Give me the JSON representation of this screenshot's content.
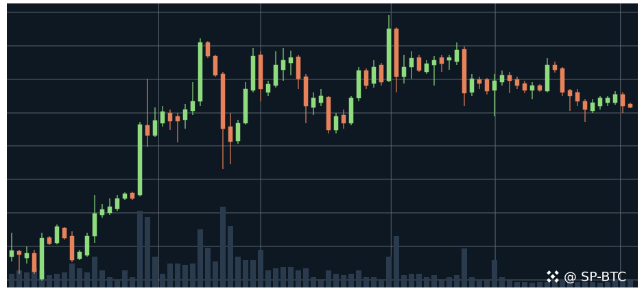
{
  "chart_data": {
    "type": "candlestick",
    "watermark": "@ SP-BTC",
    "ylim": [
      0,
      415
    ],
    "vlim": [
      0,
      415
    ],
    "ygrid": [
      11,
      60,
      109,
      158,
      207,
      255,
      304,
      353,
      402
    ],
    "xgrid": [
      19.5,
      33,
      50.3,
      64.1,
      80.7
    ],
    "background": "#0e1822",
    "grid_color": "#5b6470",
    "up_color": "#8fdc7e",
    "down_color": "#e8825a",
    "volume_color": "#2b3b4e",
    "open": [
      45,
      53,
      43,
      50,
      12,
      73,
      65,
      87,
      75,
      42,
      47,
      75,
      106,
      109,
      115,
      130,
      138,
      135,
      237,
      222,
      240,
      255,
      250,
      245,
      258,
      272,
      358,
      338,
      312,
      235,
      214,
      240,
      288,
      340,
      285,
      295,
      318,
      328,
      337,
      308,
      263,
      270,
      278,
      230,
      252,
      240,
      277,
      317,
      298,
      325,
      302,
      378,
      308,
      322,
      336,
      315,
      325,
      336,
      332,
      330,
      348,
      285,
      304,
      304,
      288,
      300,
      310,
      304,
      298,
      288,
      295,
      287,
      325,
      320,
      288,
      285,
      272,
      258,
      265,
      270,
      270,
      282,
      268
    ],
    "high": [
      80,
      55,
      60,
      55,
      80,
      75,
      92,
      88,
      82,
      55,
      80,
      135,
      122,
      130,
      135,
      139,
      140,
      242,
      305,
      263,
      265,
      260,
      255,
      268,
      300,
      364,
      360,
      340,
      315,
      255,
      245,
      300,
      350,
      345,
      302,
      345,
      350,
      346,
      340,
      312,
      285,
      290,
      280,
      255,
      260,
      280,
      322,
      320,
      332,
      328,
      398,
      380,
      340,
      345,
      340,
      332,
      338,
      340,
      340,
      358,
      352,
      312,
      308,
      306,
      312,
      317,
      315,
      308,
      302,
      300,
      297,
      335,
      330,
      322,
      290,
      290,
      275,
      275,
      280,
      280,
      287,
      285,
      270
    ],
    "low": [
      38,
      20,
      35,
      20,
      10,
      62,
      63,
      70,
      37,
      40,
      45,
      65,
      102,
      106,
      112,
      128,
      128,
      133,
      205,
      220,
      235,
      230,
      212,
      232,
      252,
      265,
      335,
      308,
      173,
      180,
      210,
      238,
      285,
      272,
      280,
      292,
      302,
      310,
      290,
      240,
      252,
      265,
      225,
      225,
      232,
      237,
      272,
      290,
      292,
      295,
      300,
      285,
      298,
      305,
      315,
      312,
      295,
      315,
      318,
      325,
      265,
      280,
      290,
      282,
      250,
      295,
      284,
      290,
      284,
      275,
      286,
      285,
      314,
      280,
      258,
      265,
      242,
      255,
      260,
      265,
      267,
      255,
      262
    ],
    "close": [
      54,
      48,
      50,
      23,
      72,
      64,
      89,
      72,
      40,
      52,
      75,
      108,
      114,
      118,
      130,
      137,
      130,
      238,
      222,
      244,
      257,
      243,
      243,
      260,
      272,
      358,
      338,
      310,
      232,
      213,
      240,
      290,
      338,
      290,
      297,
      325,
      332,
      336,
      305,
      265,
      277,
      280,
      230,
      250,
      240,
      277,
      317,
      295,
      322,
      300,
      378,
      308,
      322,
      335,
      317,
      327,
      332,
      327,
      336,
      347,
      284,
      305,
      298,
      287,
      302,
      310,
      302,
      295,
      288,
      295,
      288,
      325,
      318,
      285,
      280,
      272,
      260,
      270,
      277,
      277,
      282,
      265,
      263
    ],
    "volume": [
      20,
      25,
      22,
      28,
      25,
      18,
      20,
      22,
      35,
      28,
      22,
      45,
      25,
      15,
      12,
      25,
      15,
      112,
      103,
      45,
      20,
      35,
      35,
      33,
      35,
      85,
      58,
      38,
      118,
      90,
      45,
      40,
      40,
      55,
      25,
      28,
      30,
      30,
      25,
      28,
      15,
      10,
      25,
      20,
      18,
      20,
      25,
      15,
      15,
      12,
      45,
      75,
      18,
      20,
      20,
      15,
      18,
      10,
      15,
      18,
      57,
      15,
      12,
      10,
      40,
      15,
      10,
      8,
      8,
      7,
      8,
      8,
      10,
      12,
      10,
      8,
      8,
      8,
      7,
      8,
      10,
      12,
      10
    ]
  }
}
